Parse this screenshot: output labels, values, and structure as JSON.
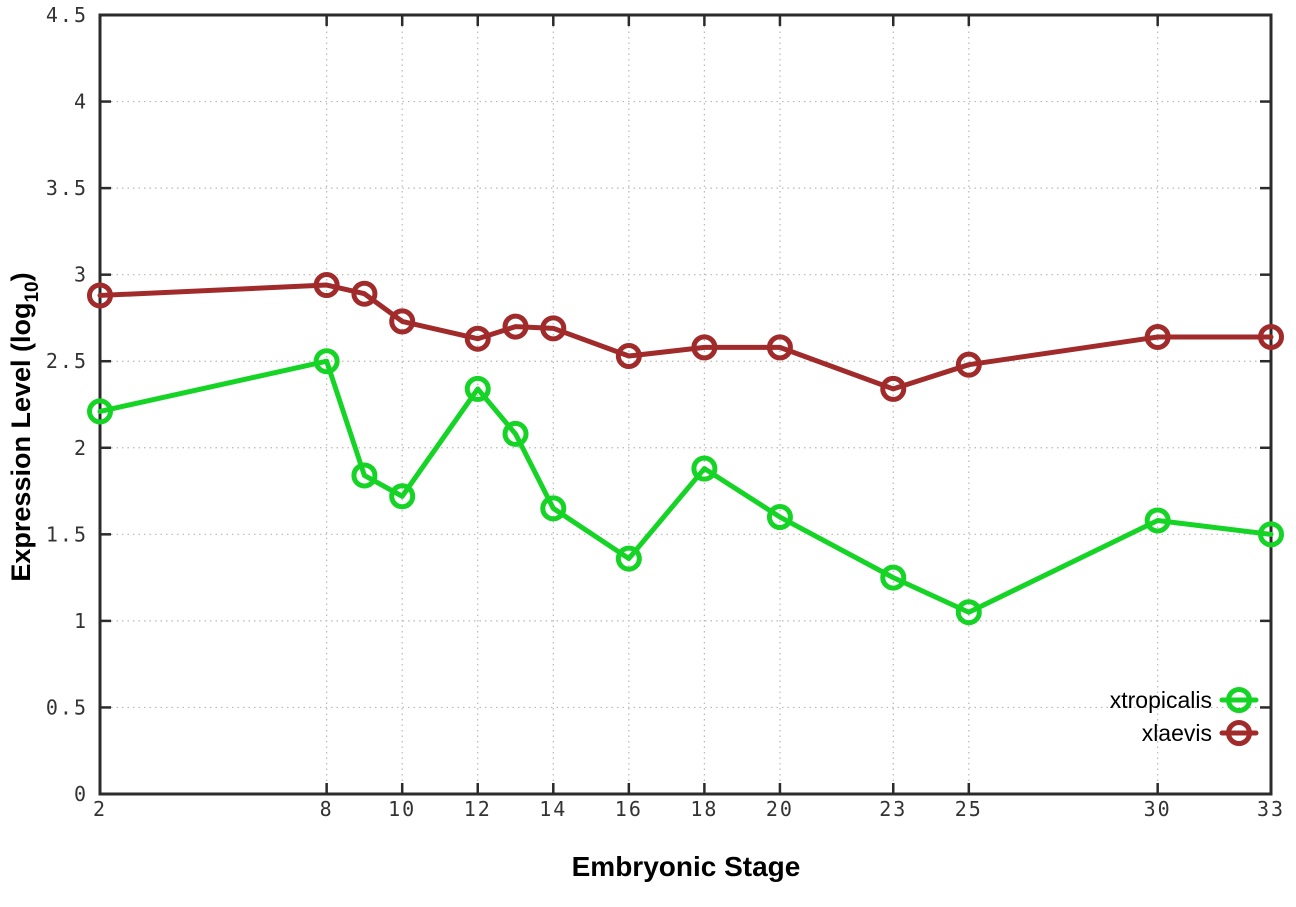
{
  "chart_data": {
    "type": "line",
    "title": "",
    "xlabel": "Embryonic Stage",
    "ylabel": "Expression Level (log10)",
    "ylabel_main": "Expression Level (log",
    "ylabel_sub": "10",
    "ylabel_close": ")",
    "xlim": [
      2,
      33
    ],
    "ylim": [
      0,
      4.5
    ],
    "grid": true,
    "legend_position": "inside-bottom-right",
    "x_ticks": [
      2,
      8,
      10,
      12,
      14,
      16,
      18,
      20,
      23,
      25,
      30,
      33
    ],
    "y_ticks": [
      0,
      0.5,
      1,
      1.5,
      2,
      2.5,
      3,
      3.5,
      4,
      4.5
    ],
    "x": [
      2,
      8,
      9,
      10,
      12,
      13,
      14,
      16,
      18,
      20,
      23,
      25,
      30,
      33
    ],
    "series": [
      {
        "name": "xtropicalis",
        "color": "#15d425",
        "marker": "open-circle",
        "values": [
          2.21,
          2.5,
          1.84,
          1.72,
          2.34,
          2.08,
          1.65,
          1.36,
          1.88,
          1.6,
          1.25,
          1.05,
          1.58,
          1.5
        ]
      },
      {
        "name": "xlaevis",
        "color": "#a12a2a",
        "marker": "open-circle",
        "values": [
          2.88,
          2.94,
          2.89,
          2.73,
          2.63,
          2.7,
          2.69,
          2.53,
          2.58,
          2.58,
          2.34,
          2.48,
          2.64,
          2.64
        ]
      }
    ],
    "axis_color": "#2b2b2b",
    "grid_color": "#b8b8b8",
    "tick_label_color": "#333333"
  }
}
